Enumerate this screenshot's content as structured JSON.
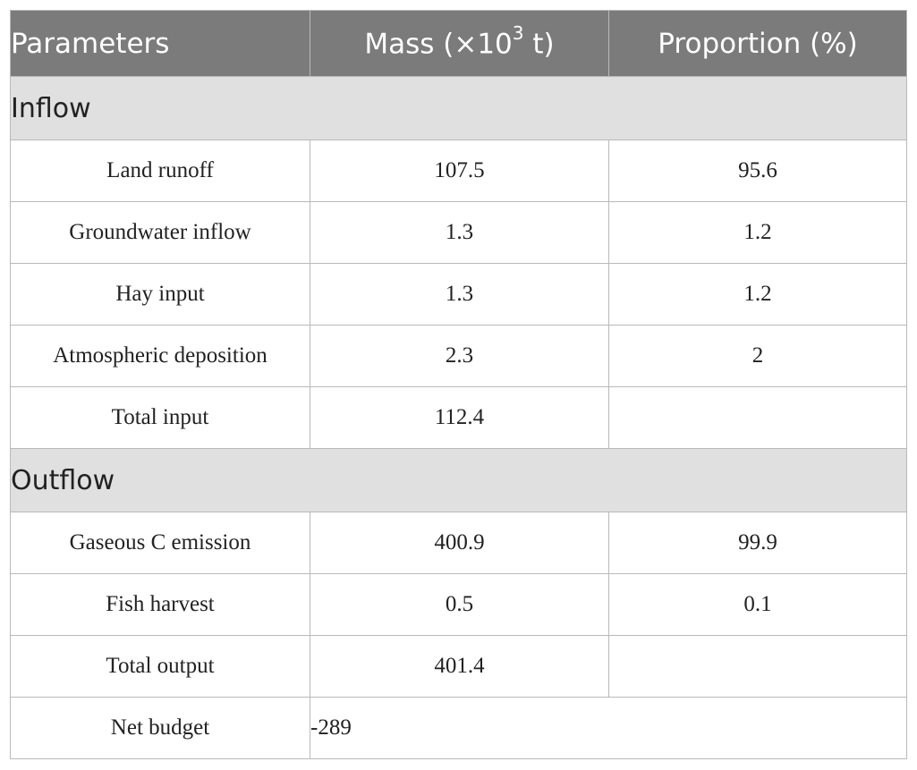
{
  "header": {
    "col1": "Parameters",
    "col2_prefix": "Mass (×10",
    "col2_sup": "3",
    "col2_suffix": " t)",
    "col3": "Proportion (%)"
  },
  "sections": [
    {
      "label": "Inflow",
      "rows": [
        {
          "param": "Land runoff",
          "mass": "107.5",
          "proportion": "95.6"
        },
        {
          "param": "Groundwater inflow",
          "mass": "1.3",
          "proportion": "1.2"
        },
        {
          "param": "Hay input",
          "mass": "1.3",
          "proportion": "1.2"
        },
        {
          "param": "Atmospheric deposition",
          "mass": "2.3",
          "proportion": "2"
        },
        {
          "param": "Total input",
          "mass": "112.4",
          "proportion": ""
        }
      ]
    },
    {
      "label": "Outflow",
      "rows": [
        {
          "param": "Gaseous C emission",
          "mass": "400.9",
          "proportion": "99.9"
        },
        {
          "param": "Fish harvest",
          "mass": "0.5",
          "proportion": "0.1"
        },
        {
          "param": "Total output",
          "mass": "401.4",
          "proportion": ""
        }
      ]
    }
  ],
  "net": {
    "param": "Net budget",
    "mass": "-289"
  }
}
